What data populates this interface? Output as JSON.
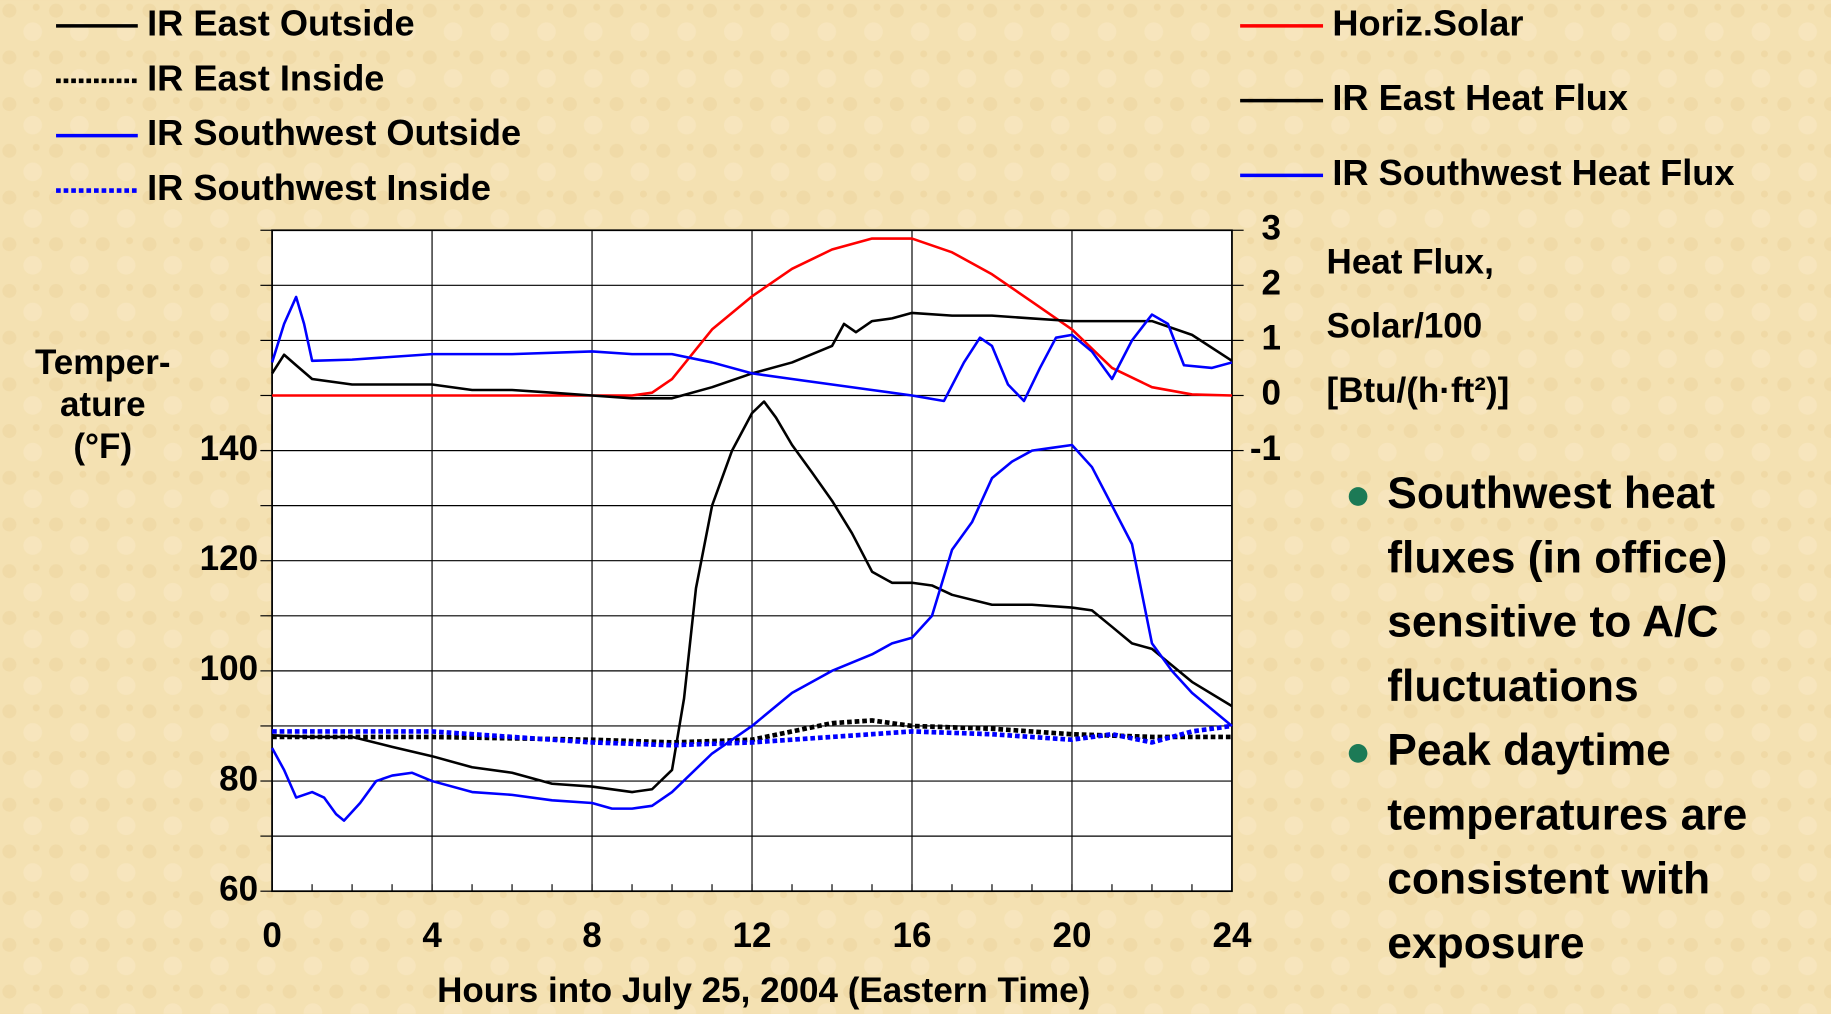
{
  "chart_data": {
    "type": "line",
    "xlabel": "Hours into July 25, 2004 (Eastern Time)",
    "ylabel": [
      "Temper-",
      "ature",
      "(°F)"
    ],
    "y2label": [
      "Heat Flux,",
      "Solar/100",
      "[Btu/(h·ft²)]"
    ],
    "xlim": [
      0,
      24
    ],
    "xticks": [
      0,
      4,
      8,
      12,
      16,
      20,
      24
    ],
    "ylim": [
      60,
      180
    ],
    "yticks": [
      60,
      80,
      100,
      120,
      140
    ],
    "y2lim": [
      -1,
      3
    ],
    "y2ticks": [
      3,
      2,
      1,
      0,
      -1
    ],
    "grid": true,
    "series": [
      {
        "name": "IR East Outside",
        "color": "#000000",
        "dash": "solid",
        "x": [
          0,
          1,
          2,
          3,
          4,
          5,
          6,
          7,
          8,
          9,
          9.5,
          10,
          10.3,
          10.6,
          11,
          11.5,
          12,
          12.3,
          12.6,
          13,
          13.5,
          14,
          14.5,
          15,
          15.5,
          16,
          16.5,
          17,
          18,
          19,
          20,
          20.5,
          21,
          21.5,
          22,
          23,
          24
        ],
        "values": [
          88.3,
          88,
          88,
          86.2,
          84.5,
          82.5,
          81.5,
          79.5,
          79,
          78,
          78.5,
          82,
          95,
          115,
          130,
          140,
          146.8,
          148.9,
          146,
          141,
          136,
          130.9,
          125,
          118,
          116,
          116,
          115.5,
          113.8,
          112,
          112,
          111.5,
          111,
          108,
          105,
          104,
          98,
          93.6
        ]
      },
      {
        "name": "IR East Inside",
        "color": "#000000",
        "dash": "dotted",
        "x": [
          0,
          4,
          8,
          10,
          12,
          13,
          14,
          15,
          16,
          18,
          20,
          22,
          24
        ],
        "values": [
          88,
          88,
          87.5,
          87,
          87.5,
          89,
          90.5,
          91,
          90,
          89.5,
          88.5,
          88,
          88
        ]
      },
      {
        "name": "IR Southwest Outside",
        "color": "#0000ff",
        "dash": "solid",
        "x": [
          0,
          0.3,
          0.6,
          1,
          1.3,
          1.6,
          1.8,
          2.2,
          2.6,
          3,
          3.5,
          4,
          5,
          6,
          7,
          8,
          8.5,
          9,
          9.5,
          10,
          11,
          12,
          13,
          14,
          15,
          15.5,
          16,
          16.5,
          17,
          17.5,
          18,
          18.5,
          19,
          19.5,
          20,
          20.5,
          21,
          21.5,
          22,
          22.5,
          23,
          24
        ],
        "values": [
          86,
          82,
          77,
          78,
          77,
          74,
          72.8,
          76,
          80,
          81,
          81.5,
          80,
          78,
          77.5,
          76.5,
          76,
          75,
          75,
          75.5,
          78,
          85,
          90,
          96,
          100,
          103,
          105,
          106,
          110,
          122,
          127,
          135,
          138,
          140,
          140.5,
          141,
          137,
          130,
          123,
          105,
          100,
          96,
          90
        ]
      },
      {
        "name": "IR Southwest Inside",
        "color": "#0000ff",
        "dash": "dotted",
        "x": [
          0,
          2,
          4,
          6,
          8,
          10,
          12,
          14,
          16,
          18,
          20,
          21,
          22,
          23,
          24
        ],
        "values": [
          89,
          89,
          89,
          88,
          87,
          86.5,
          87,
          88,
          89,
          88.5,
          87.5,
          88.5,
          87,
          89,
          90
        ]
      },
      {
        "name": "Horiz.Solar",
        "color": "#ff0000",
        "dash": "solid",
        "axis": "y2",
        "x": [
          0,
          9,
          9.5,
          10,
          11,
          12,
          13,
          14,
          15,
          16,
          17,
          18,
          19,
          20,
          21,
          22,
          23,
          24
        ],
        "values": [
          0,
          0,
          0.05,
          0.3,
          1.2,
          1.8,
          2.3,
          2.65,
          2.85,
          2.85,
          2.6,
          2.2,
          1.7,
          1.2,
          0.5,
          0.15,
          0.02,
          0
        ]
      },
      {
        "name": "IR East Heat Flux",
        "color": "#000000",
        "dash": "solid",
        "axis": "y2",
        "x": [
          0,
          0.3,
          0.6,
          1,
          2,
          3,
          4,
          5,
          6,
          7,
          8,
          9,
          10,
          11,
          12,
          13,
          14,
          14.3,
          14.6,
          15,
          15.5,
          16,
          17,
          18,
          19,
          20,
          21,
          22,
          23,
          24
        ],
        "values": [
          0.4,
          0.74,
          0.55,
          0.3,
          0.2,
          0.2,
          0.2,
          0.1,
          0.1,
          0.05,
          0,
          -0.05,
          -0.05,
          0.15,
          0.4,
          0.6,
          0.9,
          1.3,
          1.15,
          1.35,
          1.4,
          1.5,
          1.45,
          1.45,
          1.4,
          1.35,
          1.35,
          1.35,
          1.1,
          0.63
        ]
      },
      {
        "name": "IR Southwest Heat Flux",
        "color": "#0000ff",
        "dash": "solid",
        "axis": "y2",
        "x": [
          0,
          0.3,
          0.6,
          0.8,
          1,
          2,
          4,
          6,
          8,
          9,
          10,
          11,
          12,
          13,
          14,
          15,
          16,
          16.8,
          17.3,
          17.7,
          18,
          18.4,
          18.8,
          19.2,
          19.6,
          20,
          20.5,
          21,
          21.5,
          22,
          22.4,
          22.8,
          23.5,
          24
        ],
        "values": [
          0.6,
          1.3,
          1.79,
          1.3,
          0.63,
          0.65,
          0.75,
          0.75,
          0.8,
          0.75,
          0.75,
          0.6,
          0.4,
          0.3,
          0.2,
          0.1,
          0,
          -0.1,
          0.6,
          1.05,
          0.9,
          0.2,
          -0.1,
          0.5,
          1.05,
          1.1,
          0.8,
          0.3,
          1,
          1.47,
          1.3,
          0.55,
          0.5,
          0.6
        ]
      }
    ]
  },
  "bullets": [
    [
      "Southwest heat",
      "fluxes (in office)",
      "sensitive to A/C",
      "fluctuations"
    ],
    [
      "Peak daytime",
      "temperatures are",
      "consistent with",
      "exposure"
    ]
  ]
}
